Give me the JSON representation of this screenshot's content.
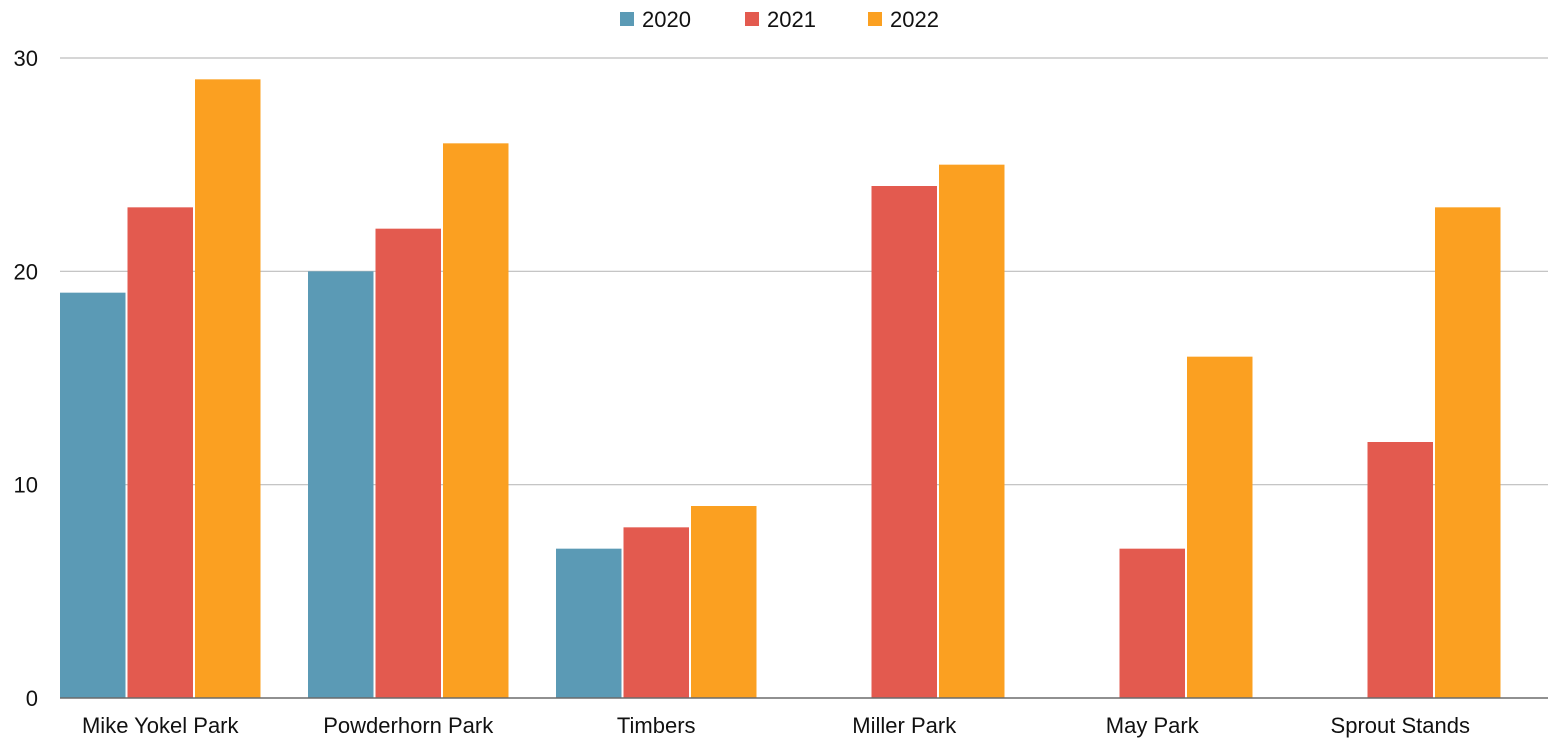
{
  "chart_data": {
    "type": "bar",
    "title": "",
    "xlabel": "",
    "ylabel": "",
    "categories": [
      "Mike Yokel Park",
      "Powderhorn Park",
      "Timbers",
      "Miller Park",
      "May Park",
      "Sprout Stands"
    ],
    "series": [
      {
        "name": "2020",
        "color": "#5b9ab5",
        "values": [
          19,
          20,
          7,
          0,
          0,
          0
        ]
      },
      {
        "name": "2021",
        "color": "#e35a4f",
        "values": [
          23,
          22,
          8,
          24,
          7,
          12
        ]
      },
      {
        "name": "2022",
        "color": "#fba021",
        "values": [
          29,
          26,
          9,
          25,
          16,
          23
        ]
      }
    ],
    "ylim": [
      0,
      30
    ],
    "yticks": [
      0,
      10,
      20,
      30
    ],
    "grid": true,
    "legend": "top-center"
  }
}
